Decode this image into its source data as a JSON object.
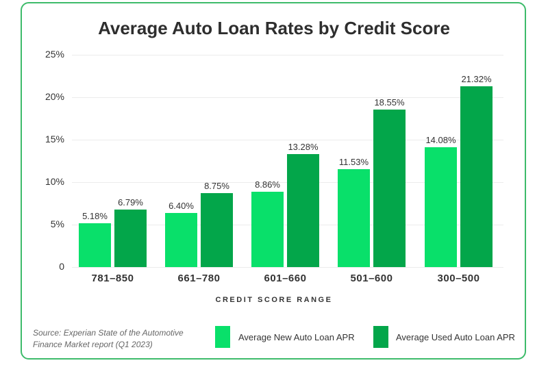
{
  "title": "Average Auto Loan Rates by Credit Score",
  "source": "Source: Experian State of the Automotive Finance Market report (Q1 2023)",
  "colors": {
    "new": "#09e06a",
    "used": "#03a64a",
    "border": "#3dbb6a"
  },
  "y_ticks": [
    "25%",
    "20%",
    "15%",
    "10%",
    "5%",
    "0"
  ],
  "x_label": "CREDIT SCORE RANGE",
  "legend": [
    {
      "label": "Average New Auto Loan APR",
      "color": "#09e06a"
    },
    {
      "label": "Average Used Auto Loan APR",
      "color": "#03a64a"
    }
  ],
  "groups": [
    {
      "range": "781–850",
      "new": "5.18%",
      "used": "6.79%"
    },
    {
      "range": "661–780",
      "new": "6.40%",
      "used": "8.75%"
    },
    {
      "range": "601–660",
      "new": "8.86%",
      "used": "13.28%"
    },
    {
      "range": "501–600",
      "new": "11.53%",
      "used": "18.55%"
    },
    {
      "range": "300–500",
      "new": "14.08%",
      "used": "21.32%"
    }
  ],
  "chart_data": {
    "type": "bar",
    "title": "Average Auto Loan Rates by Credit Score",
    "xlabel": "Credit Score Range",
    "ylabel": "",
    "ylim": [
      0,
      25
    ],
    "yticks": [
      0,
      5,
      10,
      15,
      20,
      25
    ],
    "grid": true,
    "legend_position": "bottom-right",
    "categories": [
      "781–850",
      "661–780",
      "601–660",
      "501–600",
      "300–500"
    ],
    "series": [
      {
        "name": "Average New Auto Loan APR",
        "color": "#09e06a",
        "values": [
          5.18,
          6.4,
          8.86,
          11.53,
          14.08
        ]
      },
      {
        "name": "Average Used Auto Loan APR",
        "color": "#03a64a",
        "values": [
          6.79,
          8.75,
          13.28,
          18.55,
          21.32
        ]
      }
    ],
    "annotations": [
      "Source: Experian State of the Automotive Finance Market report (Q1 2023)"
    ]
  }
}
